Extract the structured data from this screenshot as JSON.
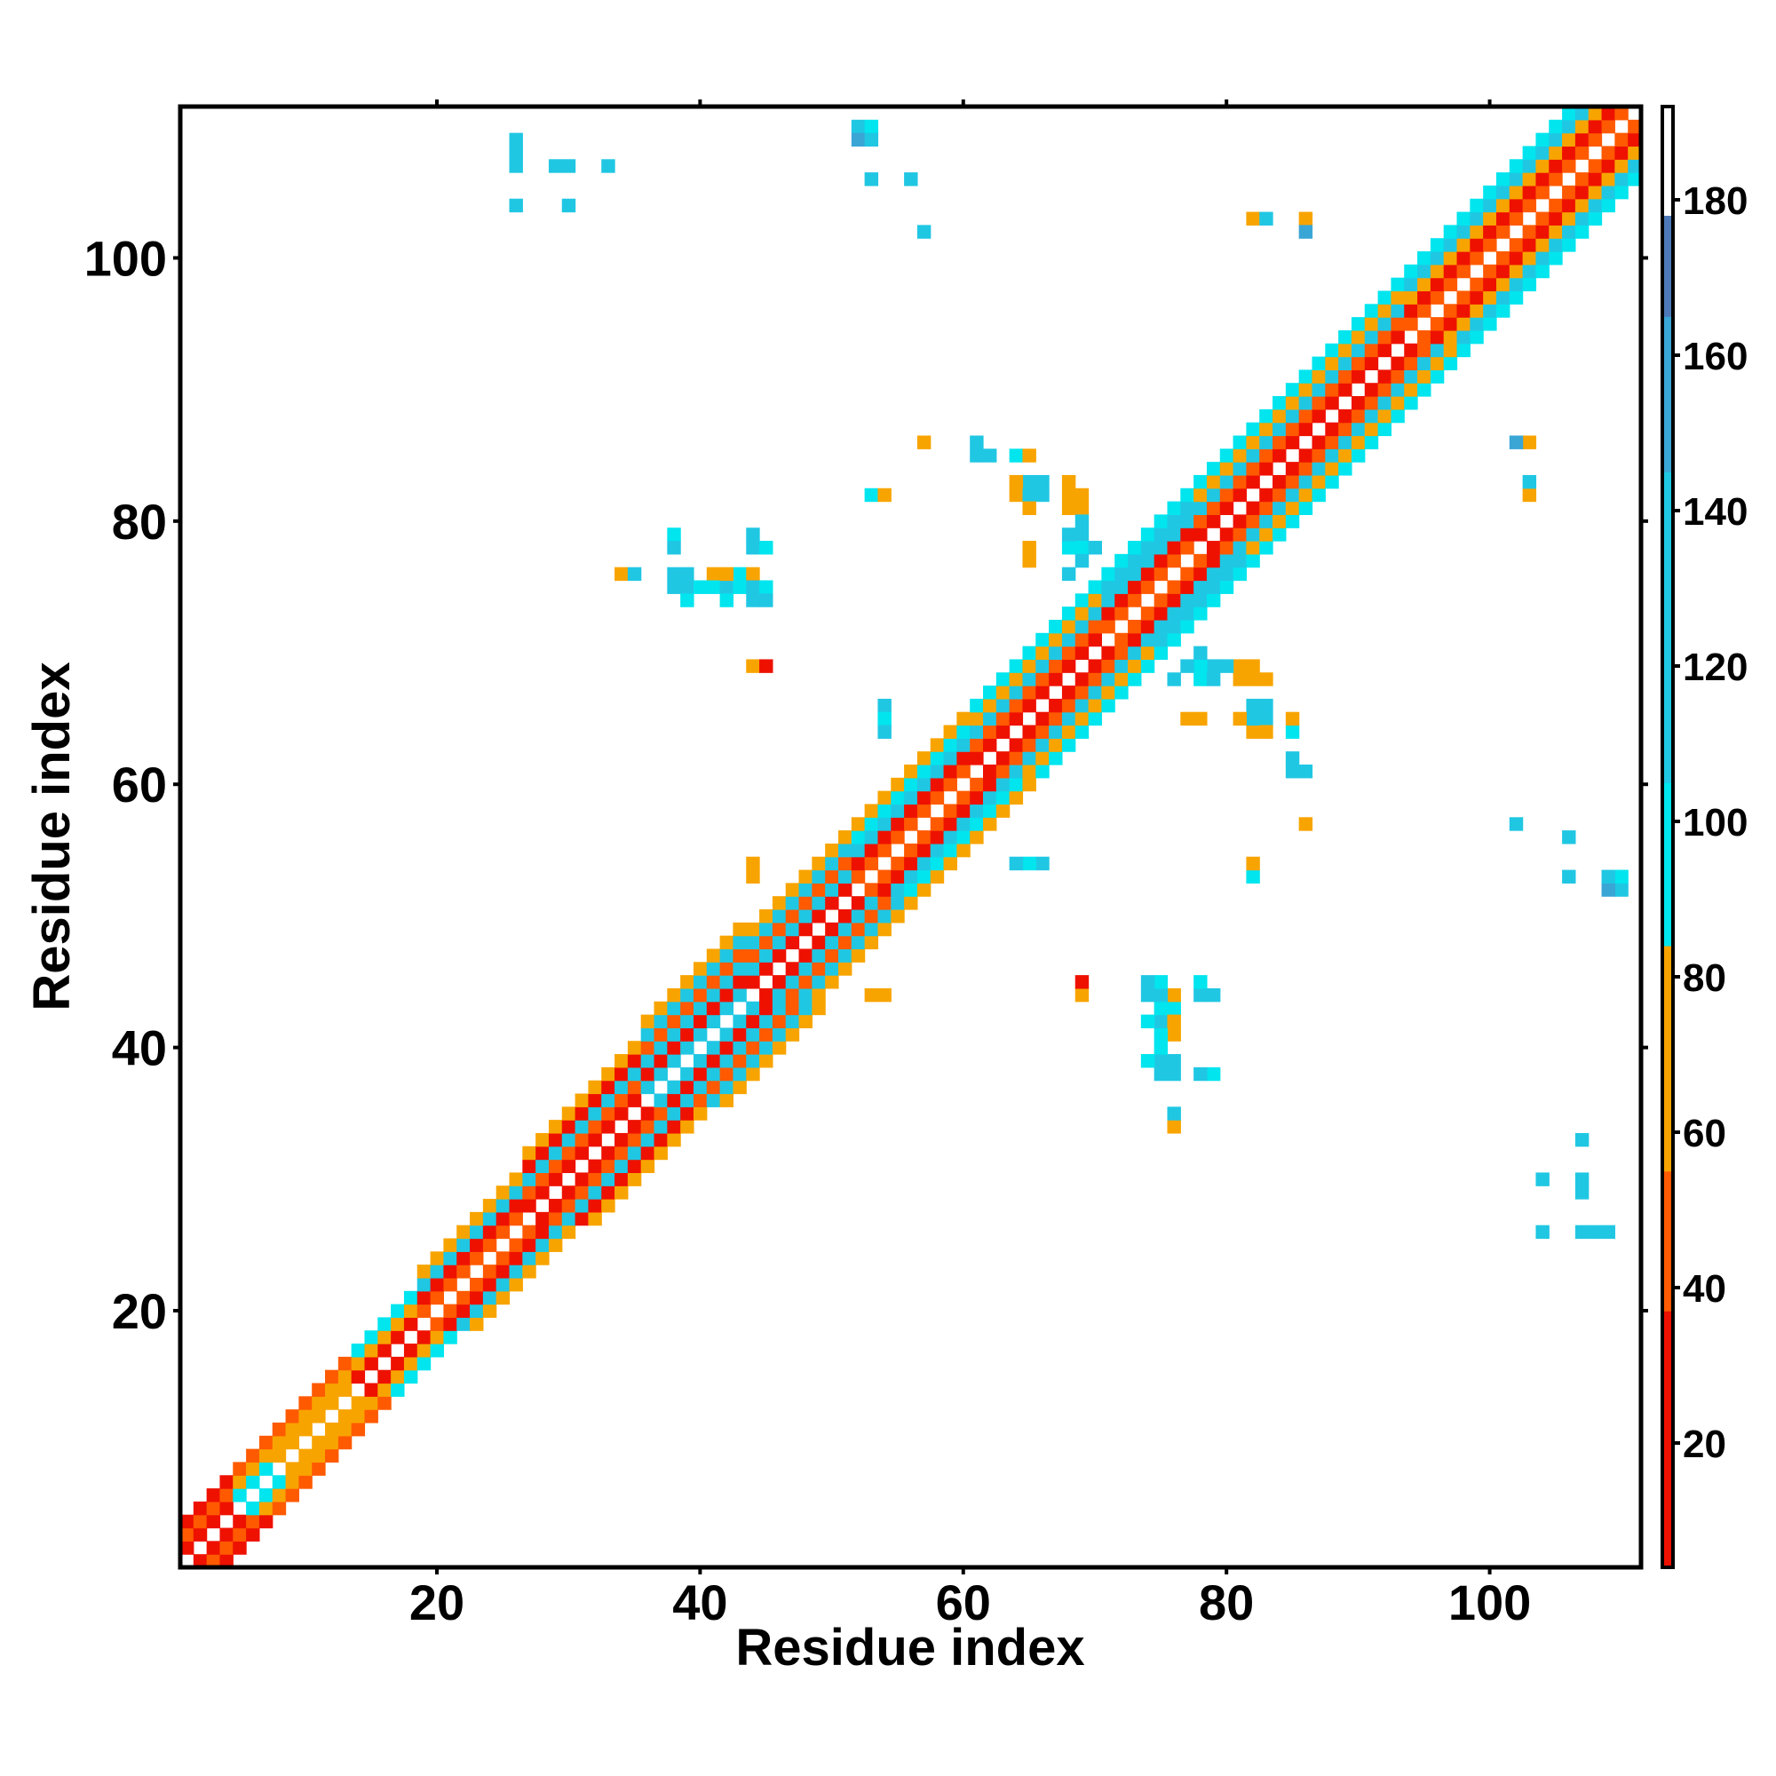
{
  "chart_data": {
    "type": "heatmap",
    "title": "",
    "xlabel": "Residue index",
    "ylabel": "Residue index",
    "xlim": [
      0.5,
      111.5
    ],
    "ylim": [
      0.5,
      111.5
    ],
    "x_ticks": [
      20,
      40,
      60,
      80,
      100
    ],
    "y_ticks": [
      20,
      40,
      60,
      80,
      100
    ],
    "colorbar": {
      "range": [
        4,
        192
      ],
      "ticks": [
        20,
        40,
        60,
        80,
        100,
        120,
        140,
        160,
        180
      ],
      "stops": [
        {
          "from": 4,
          "to": 37,
          "color": "#ee1100"
        },
        {
          "from": 37,
          "to": 55,
          "color": "#ff5a00"
        },
        {
          "from": 55,
          "to": 84,
          "color": "#f8a400"
        },
        {
          "from": 84,
          "to": 105,
          "color": "#00e5ee"
        },
        {
          "from": 105,
          "to": 145,
          "color": "#20c7e3"
        },
        {
          "from": 145,
          "to": 165,
          "color": "#3aa6d6"
        },
        {
          "from": 165,
          "to": 178,
          "color": "#4d79b8"
        },
        {
          "from": 178,
          "to": 192,
          "color": "#ffffff"
        }
      ]
    },
    "band": [
      {
        "from": 1,
        "to": 4,
        "hw": 3,
        "values": [
          25,
          40,
          25
        ]
      },
      {
        "from": 5,
        "to": 7,
        "hw": 3,
        "values": [
          95,
          70,
          40
        ]
      },
      {
        "from": 8,
        "to": 13,
        "hw": 3,
        "values": [
          70,
          70,
          40
        ]
      },
      {
        "from": 14,
        "to": 18,
        "hw": 3,
        "values": [
          30,
          70,
          95
        ]
      },
      {
        "from": 19,
        "to": 26,
        "hw": 4,
        "values": [
          45,
          25,
          110,
          70
        ]
      },
      {
        "from": 27,
        "to": 35,
        "hw": 5,
        "values": [
          25,
          45,
          110,
          30,
          70
        ]
      },
      {
        "from": 36,
        "to": 43,
        "hw": 6,
        "values": [
          110,
          25,
          130,
          45,
          110,
          70
        ]
      },
      {
        "from": 44,
        "to": 51,
        "hw": 5,
        "values": [
          25,
          110,
          45,
          130,
          70
        ]
      },
      {
        "from": 52,
        "to": 60,
        "hw": 5,
        "values": [
          45,
          25,
          110,
          95,
          70
        ]
      },
      {
        "from": 61,
        "to": 70,
        "hw": 5,
        "values": [
          25,
          45,
          110,
          70,
          95
        ]
      },
      {
        "from": 71,
        "to": 77,
        "hw": 5,
        "values": [
          45,
          25,
          110,
          130,
          95
        ]
      },
      {
        "from": 78,
        "to": 93,
        "hw": 5,
        "values": [
          25,
          45,
          110,
          70,
          95
        ]
      },
      {
        "from": 94,
        "to": 111,
        "hw": 5,
        "values": [
          45,
          25,
          70,
          110,
          95
        ]
      }
    ],
    "offdiag": [
      [
        26,
        108,
        130
      ],
      [
        26,
        107,
        130
      ],
      [
        26,
        104,
        130
      ],
      [
        29,
        107,
        130
      ],
      [
        30,
        107,
        110
      ],
      [
        30,
        104,
        130
      ],
      [
        33,
        107,
        130
      ],
      [
        52,
        110,
        110
      ],
      [
        53,
        110,
        110
      ],
      [
        52,
        109,
        160
      ],
      [
        53,
        109,
        110
      ],
      [
        53,
        106,
        110
      ],
      [
        56,
        106,
        130
      ],
      [
        57,
        102,
        150
      ],
      [
        82,
        103,
        70
      ],
      [
        83,
        103,
        110
      ],
      [
        86,
        103,
        70
      ],
      [
        86,
        102,
        150
      ],
      [
        57,
        86,
        70
      ],
      [
        61,
        86,
        130
      ],
      [
        61,
        85,
        130
      ],
      [
        62,
        85,
        110
      ],
      [
        64,
        85,
        130
      ],
      [
        65,
        85,
        70
      ],
      [
        53,
        82,
        95
      ],
      [
        54,
        82,
        70
      ],
      [
        64,
        82,
        70
      ],
      [
        65,
        82,
        110
      ],
      [
        66,
        82,
        130
      ],
      [
        68,
        82,
        70
      ],
      [
        68,
        81,
        70
      ],
      [
        69,
        81,
        70
      ],
      [
        69,
        79,
        130
      ],
      [
        65,
        78,
        70
      ],
      [
        68,
        78,
        95
      ],
      [
        69,
        78,
        95
      ],
      [
        70,
        78,
        130
      ],
      [
        38,
        79,
        95
      ],
      [
        38,
        78,
        110
      ],
      [
        44,
        79,
        130
      ],
      [
        44,
        78,
        130
      ],
      [
        45,
        78,
        95
      ],
      [
        34,
        76,
        70
      ],
      [
        35,
        76,
        130
      ],
      [
        38,
        76,
        70
      ],
      [
        39,
        76,
        130
      ],
      [
        41,
        76,
        70
      ],
      [
        43,
        76,
        95
      ],
      [
        44,
        76,
        70
      ],
      [
        38,
        75,
        130
      ],
      [
        39,
        75,
        95
      ],
      [
        40,
        75,
        95
      ],
      [
        41,
        75,
        95
      ],
      [
        42,
        75,
        95
      ],
      [
        43,
        75,
        95
      ],
      [
        44,
        75,
        130
      ],
      [
        45,
        75,
        130
      ],
      [
        39,
        74,
        95
      ],
      [
        42,
        74,
        95
      ],
      [
        44,
        74,
        130
      ],
      [
        45,
        74,
        95
      ],
      [
        44,
        69,
        70
      ],
      [
        45,
        69,
        25
      ],
      [
        102,
        86,
        150
      ],
      [
        103,
        86,
        70
      ],
      [
        103,
        83,
        110
      ],
      [
        103,
        82,
        70
      ],
      [
        78,
        70,
        110
      ],
      [
        77,
        69,
        110
      ],
      [
        78,
        69,
        95
      ],
      [
        80,
        69,
        110
      ],
      [
        82,
        69,
        70
      ],
      [
        76,
        68,
        130
      ],
      [
        79,
        68,
        110
      ],
      [
        83,
        68,
        70
      ],
      [
        83,
        66,
        110
      ],
      [
        77,
        65,
        70
      ],
      [
        81,
        65,
        70
      ],
      [
        83,
        65,
        130
      ],
      [
        85,
        65,
        70
      ],
      [
        83,
        64,
        70
      ],
      [
        85,
        64,
        95
      ],
      [
        85,
        62,
        110
      ],
      [
        85,
        61,
        130
      ],
      [
        86,
        61,
        110
      ],
      [
        86,
        57,
        70
      ],
      [
        54,
        66,
        110
      ],
      [
        54,
        65,
        110
      ],
      [
        64,
        54,
        110
      ],
      [
        65,
        54,
        95
      ],
      [
        82,
        54,
        70
      ],
      [
        82,
        53,
        95
      ],
      [
        44,
        53,
        70
      ],
      [
        102,
        57,
        110
      ],
      [
        106,
        56,
        110
      ],
      [
        106,
        53,
        110
      ],
      [
        109,
        53,
        110
      ],
      [
        110,
        53,
        95
      ],
      [
        109,
        52,
        150
      ],
      [
        110,
        52,
        110
      ],
      [
        54,
        44,
        70
      ],
      [
        69,
        45,
        25
      ],
      [
        69,
        44,
        70
      ],
      [
        74,
        45,
        130
      ],
      [
        75,
        45,
        95
      ],
      [
        78,
        45,
        95
      ],
      [
        74,
        44,
        130
      ],
      [
        75,
        44,
        110
      ],
      [
        78,
        44,
        130
      ],
      [
        79,
        44,
        130
      ],
      [
        75,
        43,
        95
      ],
      [
        75,
        42,
        110
      ],
      [
        76,
        42,
        70
      ],
      [
        75,
        41,
        95
      ],
      [
        75,
        40,
        95
      ],
      [
        74,
        39,
        95
      ],
      [
        75,
        39,
        130
      ],
      [
        76,
        39,
        130
      ],
      [
        75,
        38,
        130
      ],
      [
        76,
        38,
        110
      ],
      [
        78,
        38,
        110
      ],
      [
        79,
        38,
        95
      ],
      [
        76,
        35,
        130
      ],
      [
        76,
        34,
        70
      ],
      [
        107,
        33,
        130
      ],
      [
        104,
        30,
        130
      ],
      [
        107,
        30,
        130
      ],
      [
        107,
        29,
        110
      ],
      [
        104,
        26,
        130
      ],
      [
        107,
        26,
        130
      ],
      [
        108,
        26,
        110
      ],
      [
        109,
        26,
        130
      ]
    ]
  }
}
